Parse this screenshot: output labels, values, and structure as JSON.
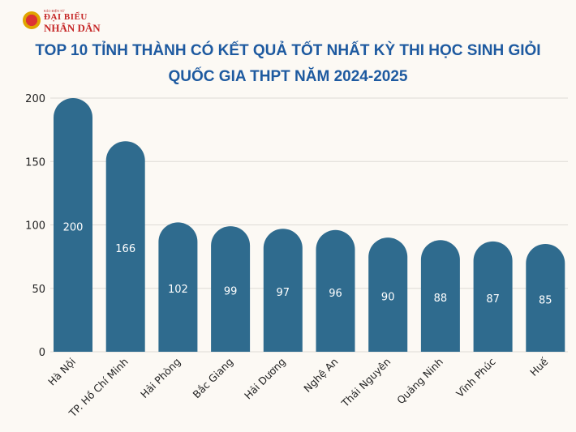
{
  "logo": {
    "small": "BÁO ĐIỆN TỬ",
    "line1": "ĐẠI BIỂU",
    "line2": "NHÂN DÂN"
  },
  "colors": {
    "bar": "#2f6b8e",
    "title": "#1e5aa0",
    "background": "#fcf9f4",
    "grid": "#dedbd6"
  },
  "chart_data": {
    "type": "bar",
    "title": "TOP 10 TỈNH THÀNH CÓ KẾT QUẢ TỐT NHẤT KỲ THI HỌC SINH GIỎI QUỐC GIA THPT NĂM 2024-2025",
    "title_lines": [
      "TOP 10 TỈNH THÀNH CÓ KẾT QUẢ TỐT NHẤT KỲ THI HỌC SINH GIỎI",
      "QUỐC GIA THPT NĂM 2024-2025"
    ],
    "categories": [
      "Hà Nội",
      "TP. Hồ Chí Minh",
      "Hải Phòng",
      "Bắc Giang",
      "Hải Dương",
      "Nghệ An",
      "Thái Nguyên",
      "Quảng Ninh",
      "Vĩnh Phúc",
      "Huế"
    ],
    "values": [
      200,
      166,
      102,
      99,
      97,
      96,
      90,
      88,
      87,
      85
    ],
    "yticks": [
      "0",
      "50",
      "100",
      "150",
      "200"
    ],
    "ylim": [
      0,
      200
    ],
    "grid": true,
    "data_labels": true
  }
}
